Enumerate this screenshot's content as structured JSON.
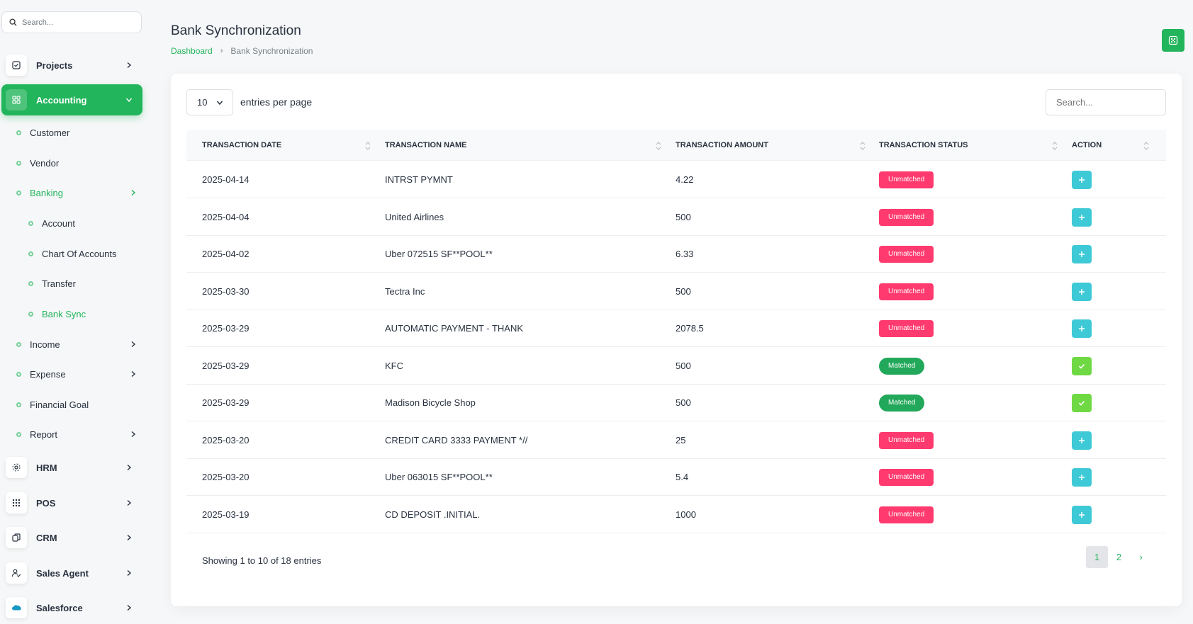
{
  "sidebar": {
    "search_placeholder": "Search...",
    "items": [
      {
        "label": "Projects",
        "icon": "checkbox-icon"
      },
      {
        "label": "Accounting",
        "icon": "grid-icon"
      },
      {
        "label": "HRM",
        "icon": "hrm-icon"
      },
      {
        "label": "POS",
        "icon": "pos-grid-icon"
      },
      {
        "label": "CRM",
        "icon": "crm-icon"
      },
      {
        "label": "Sales Agent",
        "icon": "user-check-icon"
      },
      {
        "label": "Salesforce",
        "icon": "salesforce-cloud-icon"
      }
    ],
    "accounting_sub": {
      "customer": "Customer",
      "vendor": "Vendor",
      "banking": "Banking",
      "banking_sub": [
        "Account",
        "Chart Of Accounts",
        "Transfer",
        "Bank Sync"
      ],
      "income": "Income",
      "expense": "Expense",
      "financial_goal": "Financial Goal",
      "report": "Report"
    }
  },
  "header": {
    "title": "Bank Synchronization",
    "breadcrumb": [
      "Dashboard",
      "Bank Synchronization"
    ]
  },
  "table_controls": {
    "per_page_value": "10",
    "per_page_label": "entries per page",
    "search_placeholder": "Search..."
  },
  "table": {
    "columns": [
      "TRANSACTION DATE",
      "TRANSACTION NAME",
      "TRANSACTION AMOUNT",
      "TRANSACTION STATUS",
      "ACTION"
    ],
    "rows": [
      {
        "date": "2025-04-14",
        "name": "INTRST PYMNT",
        "amount": "4.22",
        "status": "Unmatched"
      },
      {
        "date": "2025-04-04",
        "name": "United Airlines",
        "amount": "500",
        "status": "Unmatched"
      },
      {
        "date": "2025-04-02",
        "name": "Uber 072515 SF**POOL**",
        "amount": "6.33",
        "status": "Unmatched"
      },
      {
        "date": "2025-03-30",
        "name": "Tectra Inc",
        "amount": "500",
        "status": "Unmatched"
      },
      {
        "date": "2025-03-29",
        "name": "AUTOMATIC PAYMENT - THANK",
        "amount": "2078.5",
        "status": "Unmatched"
      },
      {
        "date": "2025-03-29",
        "name": "KFC",
        "amount": "500",
        "status": "Matched"
      },
      {
        "date": "2025-03-29",
        "name": "Madison Bicycle Shop",
        "amount": "500",
        "status": "Matched"
      },
      {
        "date": "2025-03-20",
        "name": "CREDIT CARD 3333 PAYMENT *//",
        "amount": "25",
        "status": "Unmatched"
      },
      {
        "date": "2025-03-20",
        "name": "Uber 063015 SF**POOL**",
        "amount": "5.4",
        "status": "Unmatched"
      },
      {
        "date": "2025-03-19",
        "name": "CD DEPOSIT .INITIAL.",
        "amount": "1000",
        "status": "Unmatched"
      }
    ]
  },
  "footer": {
    "info": "Showing 1 to 10 of 18 entries",
    "pages": [
      "1",
      "2",
      "›"
    ]
  },
  "colors": {
    "primary": "#22b55c",
    "unmatched": "#ff3a6e",
    "matched": "#22a85a",
    "action_add": "#3ec9d6",
    "action_done": "#6fd943"
  }
}
